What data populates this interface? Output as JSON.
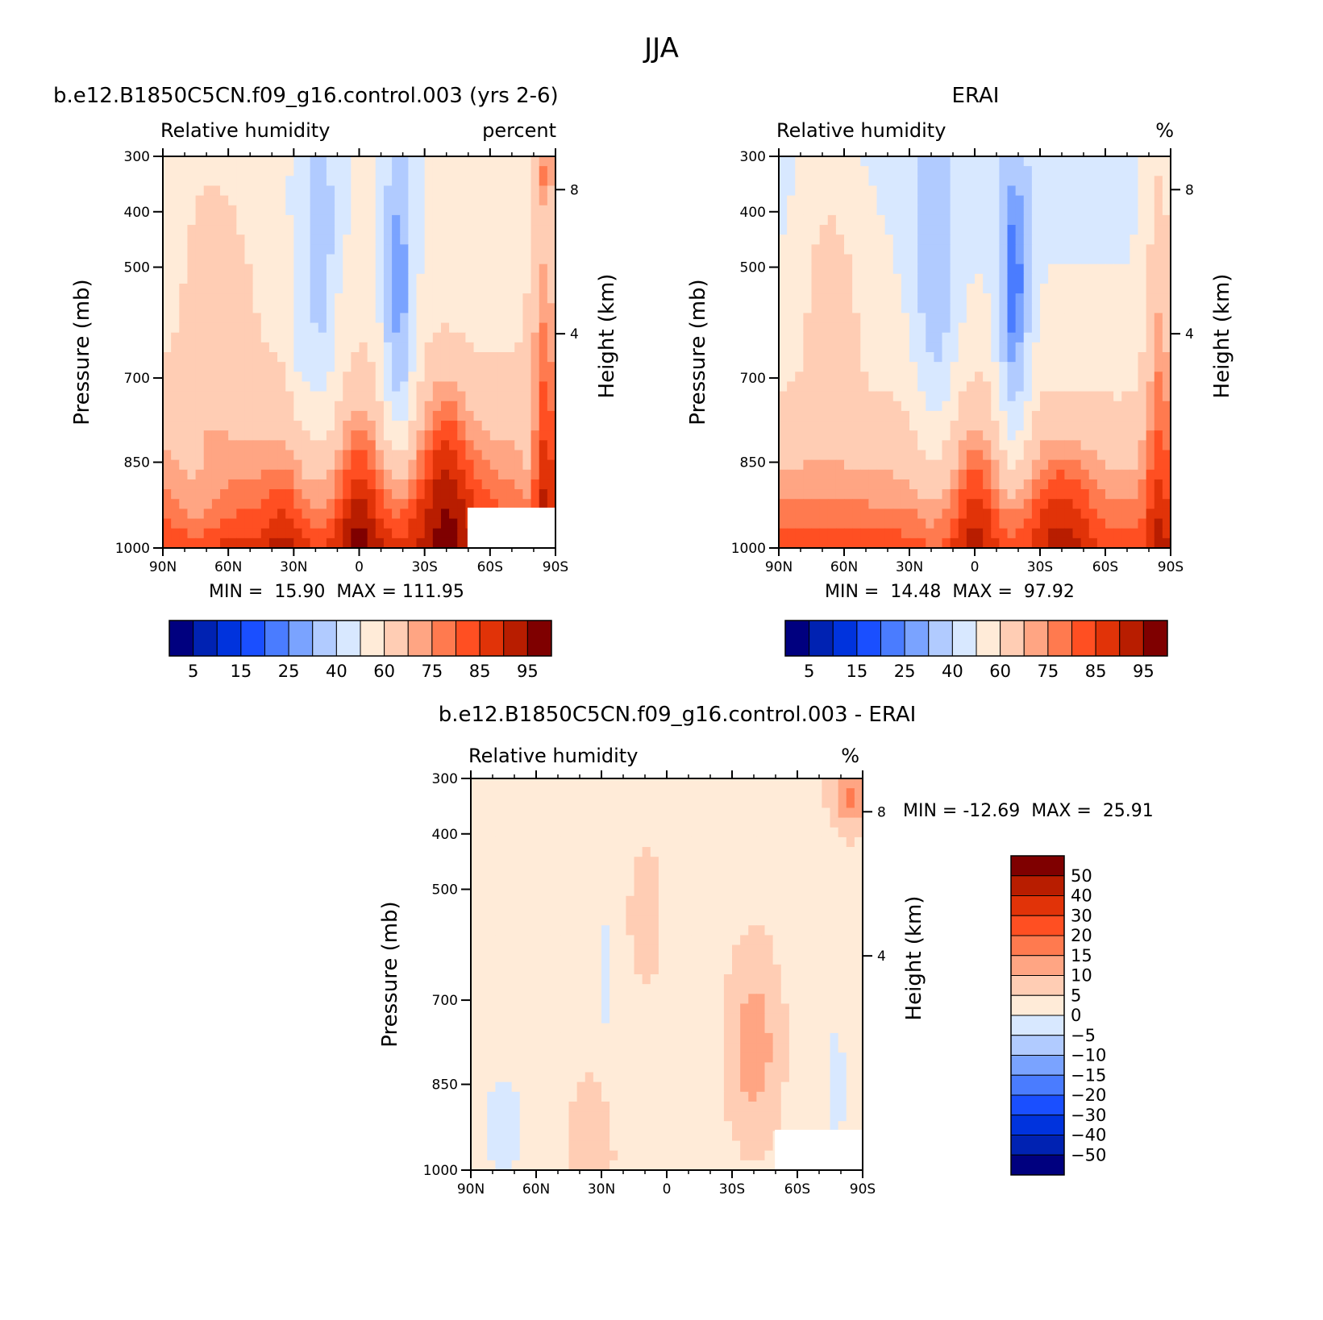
{
  "page_title": "JJA",
  "colors": {
    "fill_scale": [
      "#00007f",
      "#0022b2",
      "#0033dd",
      "#1a4fff",
      "#4a7cff",
      "#7aa3ff",
      "#b1cbff",
      "#d8e8ff",
      "#ffebd8",
      "#ffcdb4",
      "#ffa583",
      "#ff7a4f",
      "#ff4f22",
      "#e13308",
      "#b81d00",
      "#7f0000"
    ]
  },
  "chart_data": [
    {
      "id": "model",
      "type": "heatmap",
      "title": "b.e12.B1850C5CN.f09_g16.control.003 (yrs 2-6)",
      "left_label": "Relative humidity",
      "right_label": "percent",
      "ylabel": "Pressure (mb)",
      "ylabel_right": "Height (km)",
      "x_ticks": [
        "90N",
        "60N",
        "30N",
        "0",
        "30S",
        "60S",
        "90S"
      ],
      "x_range": [
        90,
        -90
      ],
      "y_ticks": [
        "300",
        "400",
        "500",
        "700",
        "850",
        "1000"
      ],
      "y_range": [
        300,
        1000
      ],
      "height_ticks": [
        "8",
        "4"
      ],
      "min_label": "MIN =",
      "min_value": "15.90",
      "max_label": "MAX =",
      "max_value": "111.95",
      "colorbar_labels": [
        "5",
        "15",
        "25",
        "40",
        "60",
        "75",
        "85",
        "95"
      ],
      "colorbar_levels": [
        5,
        10,
        15,
        20,
        25,
        30,
        40,
        50,
        60,
        70,
        75,
        80,
        85,
        90,
        95
      ],
      "masked": "bottom-right"
    },
    {
      "id": "obs",
      "type": "heatmap",
      "title": "ERAI",
      "left_label": "Relative humidity",
      "right_label": "%",
      "ylabel": "Pressure (mb)",
      "ylabel_right": "Height (km)",
      "x_ticks": [
        "90N",
        "60N",
        "30N",
        "0",
        "30S",
        "60S",
        "90S"
      ],
      "x_range": [
        90,
        -90
      ],
      "y_ticks": [
        "300",
        "400",
        "500",
        "700",
        "850",
        "1000"
      ],
      "y_range": [
        300,
        1000
      ],
      "height_ticks": [
        "8",
        "4"
      ],
      "min_label": "MIN =",
      "min_value": "14.48",
      "max_label": "MAX =",
      "max_value": "97.92",
      "colorbar_labels": [
        "5",
        "15",
        "25",
        "40",
        "60",
        "75",
        "85",
        "95"
      ],
      "colorbar_levels": [
        5,
        10,
        15,
        20,
        25,
        30,
        40,
        50,
        60,
        70,
        75,
        80,
        85,
        90,
        95
      ]
    },
    {
      "id": "diff",
      "type": "heatmap",
      "title": "b.e12.B1850C5CN.f09_g16.control.003 - ERAI",
      "left_label": "Relative humidity",
      "right_label": "%",
      "ylabel": "Pressure (mb)",
      "ylabel_right": "Height (km)",
      "x_ticks": [
        "90N",
        "60N",
        "30N",
        "0",
        "30S",
        "60S",
        "90S"
      ],
      "x_range": [
        90,
        -90
      ],
      "y_ticks": [
        "300",
        "400",
        "500",
        "700",
        "850",
        "1000"
      ],
      "y_range": [
        300,
        1000
      ],
      "height_ticks": [
        "8",
        "4"
      ],
      "min_label": "MIN =",
      "min_value": "-12.69",
      "max_label": "MAX =",
      "max_value": "25.91",
      "colorbar_labels": [
        "50",
        "40",
        "30",
        "20",
        "15",
        "10",
        "5",
        "0",
        "-5",
        "-10",
        "-15",
        "-20",
        "-30",
        "-40",
        "-50"
      ],
      "colorbar_levels": [
        -50,
        -40,
        -30,
        -20,
        -15,
        -10,
        -5,
        0,
        5,
        10,
        15,
        20,
        30,
        40,
        50
      ],
      "masked": "bottom-right"
    }
  ]
}
